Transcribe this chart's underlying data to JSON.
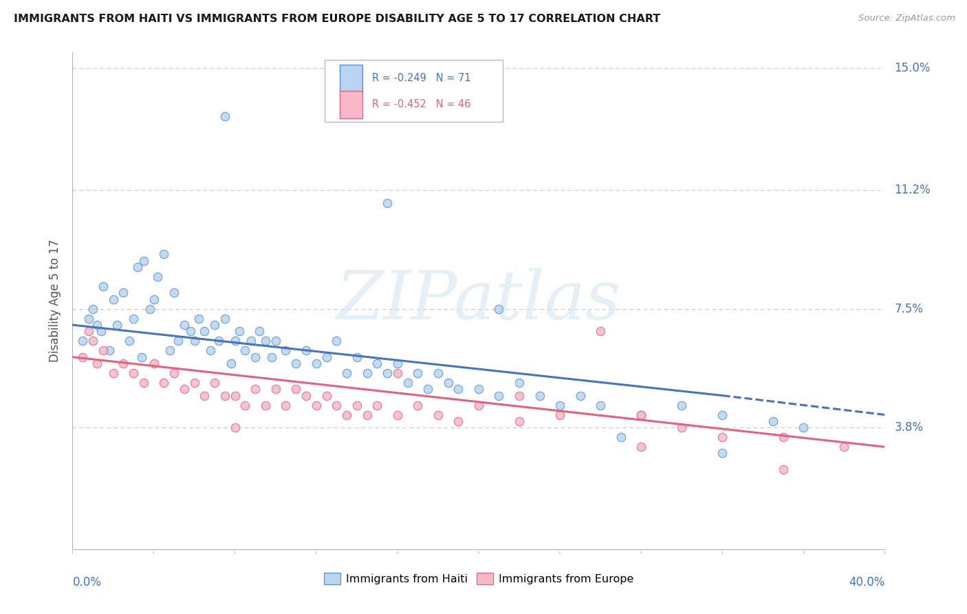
{
  "title": "IMMIGRANTS FROM HAITI VS IMMIGRANTS FROM EUROPE DISABILITY AGE 5 TO 17 CORRELATION CHART",
  "source": "Source: ZipAtlas.com",
  "ylabel": "Disability Age 5 to 17",
  "xmin": 0.0,
  "xmax": 40.0,
  "ymin": 0.0,
  "ymax": 15.5,
  "ytick_vals": [
    3.8,
    7.5,
    11.2,
    15.0
  ],
  "ytick_labels": [
    "3.8%",
    "7.5%",
    "11.2%",
    "15.0%"
  ],
  "haiti_R": "-0.249",
  "haiti_N": "71",
  "europe_R": "-0.452",
  "europe_N": "46",
  "haiti_dot_color": "#b8d4f0",
  "haiti_edge_color": "#5590d0",
  "europe_dot_color": "#f8b8c8",
  "europe_edge_color": "#e86080",
  "haiti_line_color": "#4472c4",
  "europe_line_color": "#e8607a",
  "grid_color": "#c8c8c8",
  "bg_color": "#ffffff",
  "watermark_text": "ZIPatlas",
  "haiti_scatter_x": [
    0.5,
    0.8,
    1.0,
    1.2,
    1.4,
    1.5,
    1.8,
    2.0,
    2.2,
    2.5,
    2.8,
    3.0,
    3.2,
    3.4,
    3.5,
    3.8,
    4.0,
    4.2,
    4.5,
    4.8,
    5.0,
    5.2,
    5.5,
    5.8,
    6.0,
    6.2,
    6.5,
    6.8,
    7.0,
    7.2,
    7.5,
    7.8,
    8.0,
    8.2,
    8.5,
    8.8,
    9.0,
    9.2,
    9.5,
    9.8,
    10.0,
    10.5,
    11.0,
    11.5,
    12.0,
    12.5,
    13.0,
    13.5,
    14.0,
    14.5,
    15.0,
    15.5,
    16.0,
    16.5,
    17.0,
    17.5,
    18.0,
    18.5,
    19.0,
    20.0,
    21.0,
    22.0,
    23.0,
    24.0,
    25.0,
    26.0,
    28.0,
    30.0,
    32.0,
    34.5,
    36.0
  ],
  "haiti_scatter_y": [
    6.5,
    7.2,
    7.5,
    7.0,
    6.8,
    8.2,
    6.2,
    7.8,
    7.0,
    8.0,
    6.5,
    7.2,
    8.8,
    6.0,
    9.0,
    7.5,
    7.8,
    8.5,
    9.2,
    6.2,
    8.0,
    6.5,
    7.0,
    6.8,
    6.5,
    7.2,
    6.8,
    6.2,
    7.0,
    6.5,
    7.2,
    5.8,
    6.5,
    6.8,
    6.2,
    6.5,
    6.0,
    6.8,
    6.5,
    6.0,
    6.5,
    6.2,
    5.8,
    6.2,
    5.8,
    6.0,
    6.5,
    5.5,
    6.0,
    5.5,
    5.8,
    5.5,
    5.8,
    5.2,
    5.5,
    5.0,
    5.5,
    5.2,
    5.0,
    5.0,
    4.8,
    5.2,
    4.8,
    4.5,
    4.8,
    4.5,
    4.2,
    4.5,
    4.2,
    4.0,
    3.8
  ],
  "haiti_scatter_x2": [
    7.5,
    15.5,
    21.0,
    27.0,
    32.0
  ],
  "haiti_scatter_y2": [
    13.5,
    10.8,
    7.5,
    3.5,
    3.0
  ],
  "europe_scatter_x": [
    0.5,
    0.8,
    1.0,
    1.2,
    1.5,
    2.0,
    2.5,
    3.0,
    3.5,
    4.0,
    4.5,
    5.0,
    5.5,
    6.0,
    6.5,
    7.0,
    7.5,
    8.0,
    8.5,
    9.0,
    9.5,
    10.0,
    10.5,
    11.0,
    11.5,
    12.0,
    12.5,
    13.0,
    13.5,
    14.0,
    14.5,
    15.0,
    16.0,
    17.0,
    18.0,
    19.0,
    20.0,
    22.0,
    24.0,
    26.0,
    28.0,
    30.0,
    32.0,
    35.0,
    38.0
  ],
  "europe_scatter_y": [
    6.0,
    6.8,
    6.5,
    5.8,
    6.2,
    5.5,
    5.8,
    5.5,
    5.2,
    5.8,
    5.2,
    5.5,
    5.0,
    5.2,
    4.8,
    5.2,
    4.8,
    4.8,
    4.5,
    5.0,
    4.5,
    5.0,
    4.5,
    5.0,
    4.8,
    4.5,
    4.8,
    4.5,
    4.2,
    4.5,
    4.2,
    4.5,
    4.2,
    4.5,
    4.2,
    4.0,
    4.5,
    4.0,
    4.2,
    6.8,
    4.2,
    3.8,
    3.5,
    3.5,
    3.2
  ],
  "europe_scatter_x2": [
    8.0,
    16.0,
    22.0,
    28.0,
    35.0
  ],
  "europe_scatter_y2": [
    3.8,
    5.5,
    4.8,
    3.2,
    2.5
  ],
  "haiti_line_x0": 0.0,
  "haiti_line_y0": 7.0,
  "haiti_line_x1": 32.0,
  "haiti_line_y1": 4.8,
  "haiti_dash_x0": 32.0,
  "haiti_dash_y0": 4.8,
  "haiti_dash_x1": 40.0,
  "haiti_dash_y1": 4.2,
  "europe_line_x0": 0.0,
  "europe_line_y0": 6.0,
  "europe_line_x1": 40.0,
  "europe_line_y1": 3.2
}
